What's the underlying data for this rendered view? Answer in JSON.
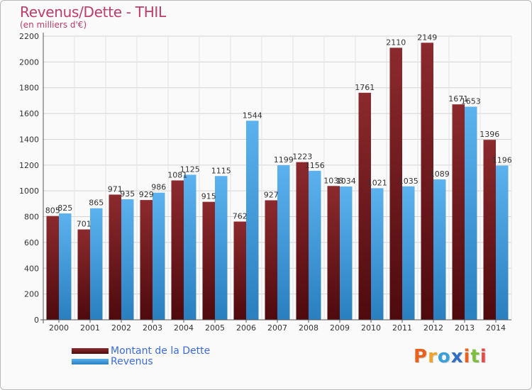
{
  "chart_data": {
    "type": "bar",
    "title": "Revenus/Dette - THIL",
    "subtitle": "(en milliers d'€)",
    "categories": [
      "2000",
      "2001",
      "2002",
      "2003",
      "2004",
      "2005",
      "2006",
      "2007",
      "2008",
      "2009",
      "2010",
      "2011",
      "2012",
      "2013",
      "2014"
    ],
    "series": [
      {
        "name": "Montant de la Dette",
        "values": [
          805,
          701,
          971,
          929,
          1081,
          915,
          762,
          927,
          1223,
          1038,
          1761,
          2110,
          2149,
          1671,
          1396
        ],
        "labels": [
          "805",
          "701",
          "971",
          "929",
          "1081",
          "915",
          "762",
          "927",
          "1223",
          "1038",
          "1761",
          "2110",
          "2149",
          "1671",
          "1396"
        ],
        "color": "#7a1a1e"
      },
      {
        "name": "Revenus",
        "values": [
          825,
          865,
          935,
          986,
          1125,
          1115,
          1544,
          1199,
          1156,
          1034,
          1021,
          1035,
          1089,
          1653,
          1196
        ],
        "labels": [
          "825",
          "865",
          "935",
          "986",
          "1125",
          "1115",
          "1544",
          "1199",
          "1156",
          "1034",
          "1021",
          "1035",
          "1089",
          "1653",
          "1196"
        ],
        "color": "#4aa3e6"
      }
    ],
    "ylim": [
      0,
      2200
    ],
    "yticks": [
      0,
      200,
      400,
      600,
      800,
      1000,
      1200,
      1400,
      1600,
      1800,
      2000,
      2200
    ],
    "grid": true,
    "legend": "bottom-left"
  },
  "logo": {
    "letters": [
      "P",
      "r",
      "o",
      "x",
      "i",
      "t",
      "i"
    ],
    "colors": [
      "#e8621e",
      "#f0a22a",
      "#3aa0d8",
      "#2f6fc4",
      "#e8621e",
      "#7cbf3b",
      "#e84a4a"
    ]
  }
}
